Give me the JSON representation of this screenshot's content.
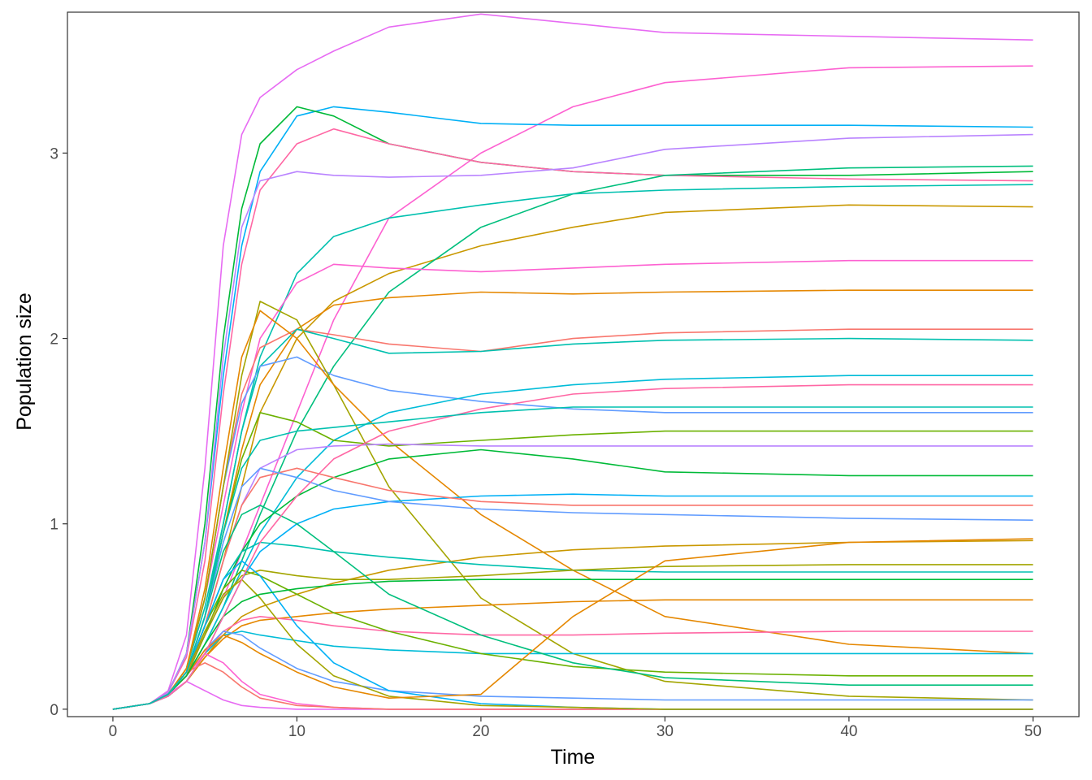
{
  "chart_data": {
    "type": "line",
    "x_label": "Time",
    "y_label": "Population size",
    "x": [
      0,
      2,
      3,
      4,
      5,
      6,
      7,
      8,
      10,
      12,
      15,
      20,
      25,
      30,
      40,
      50
    ],
    "xlim": [
      -2.47,
      52.5
    ],
    "xticks": [
      0,
      10,
      20,
      30,
      40,
      50
    ],
    "ylim": [
      -0.04,
      3.76
    ],
    "yticks": [
      0,
      1,
      2,
      3
    ],
    "series": [
      {
        "color": "#E76BF3",
        "values": [
          0,
          0.03,
          0.1,
          0.4,
          1.3,
          2.5,
          3.1,
          3.3,
          3.45,
          3.55,
          3.68,
          3.75,
          3.7,
          3.65,
          3.63,
          3.61
        ]
      },
      {
        "color": "#FD61D1",
        "values": [
          0,
          0.03,
          0.08,
          0.2,
          0.4,
          0.6,
          0.85,
          1.1,
          1.6,
          2.1,
          2.65,
          3.0,
          3.25,
          3.38,
          3.46,
          3.47
        ]
      },
      {
        "color": "#00B0F6",
        "values": [
          0,
          0.03,
          0.09,
          0.3,
          0.9,
          1.8,
          2.5,
          2.9,
          3.2,
          3.25,
          3.22,
          3.16,
          3.15,
          3.15,
          3.15,
          3.14
        ]
      },
      {
        "color": "#00BA38",
        "values": [
          0,
          0.03,
          0.09,
          0.3,
          1.0,
          2.0,
          2.7,
          3.05,
          3.25,
          3.2,
          3.05,
          2.95,
          2.9,
          2.88,
          2.88,
          2.9
        ]
      },
      {
        "color": "#FF67A4",
        "values": [
          0,
          0.03,
          0.09,
          0.28,
          0.8,
          1.7,
          2.4,
          2.8,
          3.05,
          3.13,
          3.05,
          2.95,
          2.9,
          2.88,
          2.86,
          2.85
        ]
      },
      {
        "color": "#B983FF",
        "values": [
          0,
          0.03,
          0.09,
          0.3,
          0.9,
          1.9,
          2.6,
          2.85,
          2.9,
          2.88,
          2.87,
          2.88,
          2.92,
          3.02,
          3.08,
          3.1
        ]
      },
      {
        "color": "#C99800",
        "values": [
          0,
          0.03,
          0.08,
          0.2,
          0.45,
          0.8,
          1.2,
          1.6,
          2.0,
          2.2,
          2.35,
          2.5,
          2.6,
          2.68,
          2.72,
          2.71
        ]
      },
      {
        "color": "#00BF7D",
        "values": [
          0,
          0.03,
          0.08,
          0.18,
          0.35,
          0.55,
          0.8,
          1.05,
          1.5,
          1.85,
          2.25,
          2.6,
          2.78,
          2.88,
          2.92,
          2.93
        ]
      },
      {
        "color": "#00C0AF",
        "values": [
          0,
          0.03,
          0.08,
          0.22,
          0.55,
          1.0,
          1.5,
          1.9,
          2.35,
          2.55,
          2.65,
          2.72,
          2.78,
          2.8,
          2.82,
          2.83
        ]
      },
      {
        "color": "#FD61D1",
        "values": [
          0,
          0.03,
          0.08,
          0.22,
          0.6,
          1.1,
          1.6,
          2.0,
          2.3,
          2.4,
          2.38,
          2.36,
          2.38,
          2.4,
          2.42,
          2.42
        ]
      },
      {
        "color": "#E58700",
        "values": [
          0,
          0.03,
          0.08,
          0.2,
          0.5,
          0.95,
          1.4,
          1.75,
          2.05,
          2.18,
          2.22,
          2.25,
          2.24,
          2.25,
          2.26,
          2.26
        ]
      },
      {
        "color": "#F8766D",
        "values": [
          0,
          0.03,
          0.08,
          0.22,
          0.6,
          1.2,
          1.7,
          1.95,
          2.05,
          2.02,
          1.97,
          1.93,
          2.0,
          2.03,
          2.05,
          2.05
        ]
      },
      {
        "color": "#00C0AF",
        "values": [
          0,
          0.03,
          0.08,
          0.2,
          0.5,
          1.0,
          1.5,
          1.85,
          2.05,
          2.0,
          1.92,
          1.93,
          1.97,
          1.99,
          2.0,
          1.99
        ]
      },
      {
        "color": "#619CFF",
        "values": [
          0,
          0.03,
          0.08,
          0.22,
          0.6,
          1.2,
          1.65,
          1.85,
          1.9,
          1.8,
          1.72,
          1.66,
          1.62,
          1.6,
          1.6,
          1.6
        ]
      },
      {
        "color": "#00BCD8",
        "values": [
          0,
          0.03,
          0.08,
          0.18,
          0.35,
          0.55,
          0.75,
          0.95,
          1.25,
          1.45,
          1.6,
          1.7,
          1.75,
          1.78,
          1.8,
          1.8
        ]
      },
      {
        "color": "#A3A500",
        "values": [
          0,
          0.03,
          0.08,
          0.22,
          0.6,
          1.2,
          1.8,
          2.2,
          2.1,
          1.75,
          1.2,
          0.6,
          0.3,
          0.15,
          0.07,
          0.05
        ]
      },
      {
        "color": "#E58700",
        "values": [
          0,
          0.03,
          0.08,
          0.22,
          0.65,
          1.3,
          1.9,
          2.15,
          2.0,
          1.75,
          1.45,
          1.05,
          0.75,
          0.5,
          0.35,
          0.3
        ]
      },
      {
        "color": "#6BB100",
        "values": [
          0,
          0.03,
          0.08,
          0.2,
          0.5,
          0.95,
          1.35,
          1.6,
          1.55,
          1.45,
          1.42,
          1.45,
          1.48,
          1.5,
          1.5,
          1.5
        ]
      },
      {
        "color": "#B983FF",
        "values": [
          0,
          0.03,
          0.08,
          0.2,
          0.45,
          0.8,
          1.1,
          1.3,
          1.4,
          1.42,
          1.43,
          1.42,
          1.42,
          1.42,
          1.42,
          1.42
        ]
      },
      {
        "color": "#00BA38",
        "values": [
          0,
          0.03,
          0.08,
          0.18,
          0.4,
          0.65,
          0.85,
          1.0,
          1.15,
          1.25,
          1.35,
          1.4,
          1.35,
          1.28,
          1.26,
          1.26
        ]
      },
      {
        "color": "#00B0F6",
        "values": [
          0,
          0.03,
          0.07,
          0.15,
          0.3,
          0.5,
          0.7,
          0.85,
          1.0,
          1.08,
          1.12,
          1.15,
          1.16,
          1.15,
          1.15,
          1.15
        ]
      },
      {
        "color": "#F8766D",
        "values": [
          0,
          0.03,
          0.08,
          0.2,
          0.45,
          0.8,
          1.1,
          1.25,
          1.3,
          1.25,
          1.18,
          1.12,
          1.1,
          1.1,
          1.1,
          1.1
        ]
      },
      {
        "color": "#C99800",
        "values": [
          0,
          0.03,
          0.07,
          0.15,
          0.28,
          0.4,
          0.5,
          0.55,
          0.62,
          0.68,
          0.75,
          0.82,
          0.86,
          0.88,
          0.9,
          0.91
        ]
      },
      {
        "color": "#00C0AF",
        "values": [
          0,
          0.03,
          0.08,
          0.2,
          0.45,
          0.7,
          0.85,
          0.9,
          0.88,
          0.85,
          0.82,
          0.78,
          0.75,
          0.74,
          0.74,
          0.74
        ]
      },
      {
        "color": "#A3A500",
        "values": [
          0,
          0.03,
          0.08,
          0.18,
          0.4,
          0.6,
          0.72,
          0.75,
          0.72,
          0.7,
          0.7,
          0.72,
          0.75,
          0.77,
          0.78,
          0.78
        ]
      },
      {
        "color": "#E58700",
        "values": [
          0,
          0.03,
          0.07,
          0.15,
          0.28,
          0.38,
          0.45,
          0.48,
          0.5,
          0.52,
          0.54,
          0.56,
          0.58,
          0.59,
          0.59,
          0.59
        ]
      },
      {
        "color": "#FF67A4",
        "values": [
          0,
          0.03,
          0.07,
          0.15,
          0.3,
          0.42,
          0.48,
          0.5,
          0.48,
          0.45,
          0.42,
          0.4,
          0.4,
          0.41,
          0.42,
          0.42
        ]
      },
      {
        "color": "#00BCD8",
        "values": [
          0,
          0.03,
          0.07,
          0.15,
          0.3,
          0.4,
          0.42,
          0.4,
          0.37,
          0.34,
          0.32,
          0.3,
          0.3,
          0.3,
          0.3,
          0.3
        ]
      },
      {
        "color": "#6BB100",
        "values": [
          0,
          0.03,
          0.08,
          0.2,
          0.45,
          0.65,
          0.75,
          0.72,
          0.62,
          0.52,
          0.42,
          0.3,
          0.23,
          0.2,
          0.18,
          0.18
        ]
      },
      {
        "color": "#00BF7D",
        "values": [
          0,
          0.03,
          0.08,
          0.2,
          0.5,
          0.85,
          1.05,
          1.1,
          1.0,
          0.85,
          0.62,
          0.4,
          0.25,
          0.17,
          0.13,
          0.13
        ]
      },
      {
        "color": "#619CFF",
        "values": [
          0,
          0.03,
          0.08,
          0.18,
          0.32,
          0.42,
          0.4,
          0.33,
          0.22,
          0.15,
          0.1,
          0.07,
          0.06,
          0.05,
          0.05,
          0.05
        ]
      },
      {
        "color": "#FD61D1",
        "values": [
          0,
          0.03,
          0.08,
          0.18,
          0.3,
          0.25,
          0.15,
          0.08,
          0.03,
          0.01,
          0,
          0,
          0,
          0,
          0,
          0
        ]
      },
      {
        "color": "#E76BF3",
        "values": [
          0,
          0.03,
          0.08,
          0.15,
          0.1,
          0.05,
          0.02,
          0.01,
          0,
          0,
          0,
          0,
          0,
          0,
          0,
          0
        ]
      },
      {
        "color": "#F8766D",
        "values": [
          0,
          0.03,
          0.08,
          0.2,
          0.25,
          0.2,
          0.12,
          0.06,
          0.02,
          0.01,
          0,
          0,
          0,
          0,
          0,
          0
        ]
      },
      {
        "color": "#00B0F6",
        "values": [
          0,
          0.03,
          0.08,
          0.2,
          0.45,
          0.7,
          0.8,
          0.72,
          0.45,
          0.25,
          0.1,
          0.03,
          0.01,
          0,
          0,
          0
        ]
      },
      {
        "color": "#A3A500",
        "values": [
          0,
          0.03,
          0.08,
          0.2,
          0.42,
          0.62,
          0.7,
          0.6,
          0.35,
          0.18,
          0.07,
          0.02,
          0.01,
          0,
          0,
          0
        ]
      },
      {
        "color": "#E58700",
        "values": [
          0,
          0.03,
          0.08,
          0.18,
          0.32,
          0.4,
          0.36,
          0.3,
          0.2,
          0.12,
          0.06,
          0.08,
          0.5,
          0.8,
          0.9,
          0.92
        ]
      },
      {
        "color": "#00BA38",
        "values": [
          0,
          0.03,
          0.08,
          0.18,
          0.35,
          0.5,
          0.58,
          0.62,
          0.65,
          0.67,
          0.69,
          0.7,
          0.7,
          0.7,
          0.7,
          0.7
        ]
      },
      {
        "color": "#619CFF",
        "values": [
          0,
          0.03,
          0.08,
          0.2,
          0.5,
          0.9,
          1.2,
          1.3,
          1.25,
          1.18,
          1.12,
          1.08,
          1.06,
          1.05,
          1.03,
          1.02
        ]
      },
      {
        "color": "#FF67A4",
        "values": [
          0,
          0.03,
          0.07,
          0.15,
          0.3,
          0.5,
          0.7,
          0.9,
          1.15,
          1.35,
          1.5,
          1.62,
          1.7,
          1.73,
          1.75,
          1.75
        ]
      },
      {
        "color": "#00C0AF",
        "values": [
          0,
          0.03,
          0.08,
          0.2,
          0.5,
          0.95,
          1.3,
          1.45,
          1.5,
          1.52,
          1.55,
          1.6,
          1.63,
          1.63,
          1.63,
          1.63
        ]
      }
    ]
  }
}
